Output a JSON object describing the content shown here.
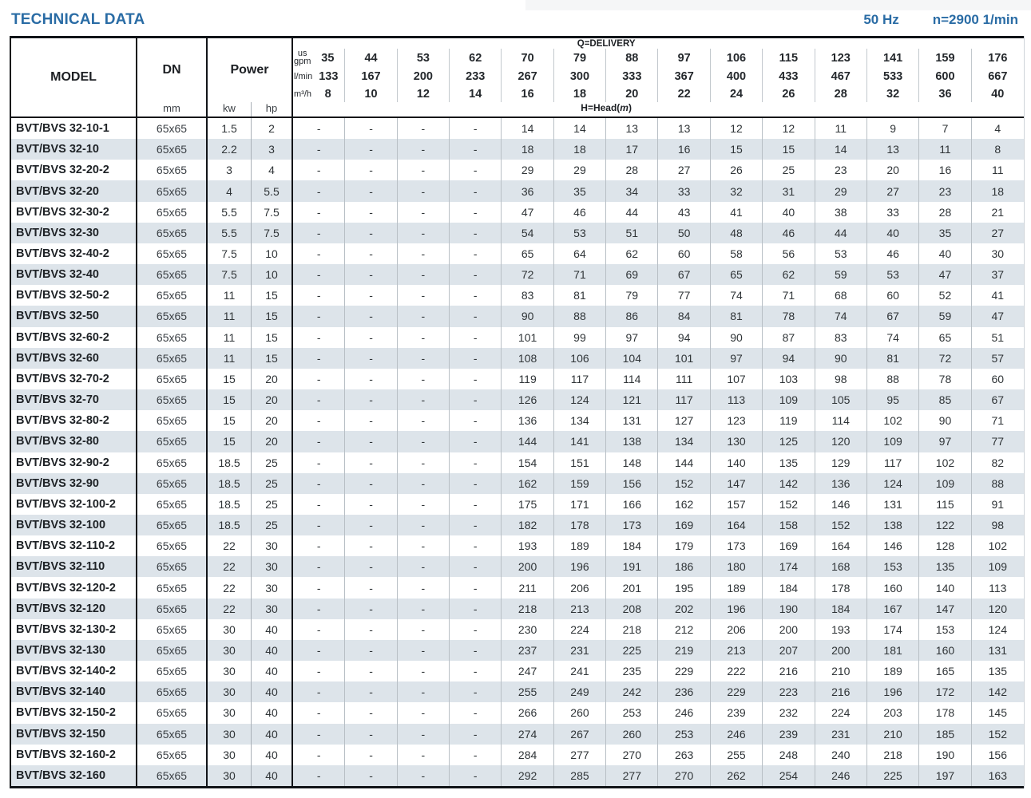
{
  "header_bar": {
    "title": "TECHNICAL DATA",
    "frequency": "50 Hz",
    "speed": "n=2900 1/min"
  },
  "colors": {
    "accent_blue": "#2a6ca5",
    "stripe": "#dde4ea"
  },
  "table": {
    "model_header": "MODEL",
    "dn_header": "DN",
    "dn_unit": "mm",
    "power_header": "Power",
    "power_units": [
      "kw",
      "hp"
    ],
    "delivery": {
      "label": "Q=DELIVERY",
      "head_label": {
        "prefix": "H=Head(",
        "symbol": "m",
        "suffix": ")"
      },
      "unit_rows": [
        {
          "unit_top": "us",
          "unit_bottom": "gpm",
          "values": [
            "35",
            "44",
            "53",
            "62",
            "70",
            "79",
            "88",
            "97",
            "106",
            "115",
            "123",
            "141",
            "159",
            "176"
          ]
        },
        {
          "unit": "l/min",
          "values": [
            "133",
            "167",
            "200",
            "233",
            "267",
            "300",
            "333",
            "367",
            "400",
            "433",
            "467",
            "533",
            "600",
            "667"
          ]
        },
        {
          "unit": "m³/h",
          "values": [
            "8",
            "10",
            "12",
            "14",
            "16",
            "18",
            "20",
            "22",
            "24",
            "26",
            "28",
            "32",
            "36",
            "40"
          ]
        }
      ]
    },
    "rows": [
      {
        "model": "BVT/BVS 32-10-1",
        "dn": "65x65",
        "kw": "1.5",
        "hp": "2",
        "head": [
          "-",
          "-",
          "-",
          "-",
          "14",
          "14",
          "13",
          "13",
          "12",
          "12",
          "11",
          "9",
          "7",
          "4"
        ]
      },
      {
        "model": "BVT/BVS 32-10",
        "dn": "65x65",
        "kw": "2.2",
        "hp": "3",
        "head": [
          "-",
          "-",
          "-",
          "-",
          "18",
          "18",
          "17",
          "16",
          "15",
          "15",
          "14",
          "13",
          "11",
          "8"
        ]
      },
      {
        "model": "BVT/BVS 32-20-2",
        "dn": "65x65",
        "kw": "3",
        "hp": "4",
        "head": [
          "-",
          "-",
          "-",
          "-",
          "29",
          "29",
          "28",
          "27",
          "26",
          "25",
          "23",
          "20",
          "16",
          "11"
        ]
      },
      {
        "model": "BVT/BVS 32-20",
        "dn": "65x65",
        "kw": "4",
        "hp": "5.5",
        "head": [
          "-",
          "-",
          "-",
          "-",
          "36",
          "35",
          "34",
          "33",
          "32",
          "31",
          "29",
          "27",
          "23",
          "18"
        ]
      },
      {
        "model": "BVT/BVS 32-30-2",
        "dn": "65x65",
        "kw": "5.5",
        "hp": "7.5",
        "head": [
          "-",
          "-",
          "-",
          "-",
          "47",
          "46",
          "44",
          "43",
          "41",
          "40",
          "38",
          "33",
          "28",
          "21"
        ]
      },
      {
        "model": "BVT/BVS 32-30",
        "dn": "65x65",
        "kw": "5.5",
        "hp": "7.5",
        "head": [
          "-",
          "-",
          "-",
          "-",
          "54",
          "53",
          "51",
          "50",
          "48",
          "46",
          "44",
          "40",
          "35",
          "27"
        ]
      },
      {
        "model": "BVT/BVS 32-40-2",
        "dn": "65x65",
        "kw": "7.5",
        "hp": "10",
        "head": [
          "-",
          "-",
          "-",
          "-",
          "65",
          "64",
          "62",
          "60",
          "58",
          "56",
          "53",
          "46",
          "40",
          "30"
        ]
      },
      {
        "model": "BVT/BVS 32-40",
        "dn": "65x65",
        "kw": "7.5",
        "hp": "10",
        "head": [
          "-",
          "-",
          "-",
          "-",
          "72",
          "71",
          "69",
          "67",
          "65",
          "62",
          "59",
          "53",
          "47",
          "37"
        ]
      },
      {
        "model": "BVT/BVS 32-50-2",
        "dn": "65x65",
        "kw": "11",
        "hp": "15",
        "head": [
          "-",
          "-",
          "-",
          "-",
          "83",
          "81",
          "79",
          "77",
          "74",
          "71",
          "68",
          "60",
          "52",
          "41"
        ]
      },
      {
        "model": "BVT/BVS 32-50",
        "dn": "65x65",
        "kw": "11",
        "hp": "15",
        "head": [
          "-",
          "-",
          "-",
          "-",
          "90",
          "88",
          "86",
          "84",
          "81",
          "78",
          "74",
          "67",
          "59",
          "47"
        ]
      },
      {
        "model": "BVT/BVS 32-60-2",
        "dn": "65x65",
        "kw": "11",
        "hp": "15",
        "head": [
          "-",
          "-",
          "-",
          "-",
          "101",
          "99",
          "97",
          "94",
          "90",
          "87",
          "83",
          "74",
          "65",
          "51"
        ]
      },
      {
        "model": "BVT/BVS 32-60",
        "dn": "65x65",
        "kw": "11",
        "hp": "15",
        "head": [
          "-",
          "-",
          "-",
          "-",
          "108",
          "106",
          "104",
          "101",
          "97",
          "94",
          "90",
          "81",
          "72",
          "57"
        ]
      },
      {
        "model": "BVT/BVS 32-70-2",
        "dn": "65x65",
        "kw": "15",
        "hp": "20",
        "head": [
          "-",
          "-",
          "-",
          "-",
          "119",
          "117",
          "114",
          "111",
          "107",
          "103",
          "98",
          "88",
          "78",
          "60"
        ]
      },
      {
        "model": "BVT/BVS 32-70",
        "dn": "65x65",
        "kw": "15",
        "hp": "20",
        "head": [
          "-",
          "-",
          "-",
          "-",
          "126",
          "124",
          "121",
          "117",
          "113",
          "109",
          "105",
          "95",
          "85",
          "67"
        ]
      },
      {
        "model": "BVT/BVS 32-80-2",
        "dn": "65x65",
        "kw": "15",
        "hp": "20",
        "head": [
          "-",
          "-",
          "-",
          "-",
          "136",
          "134",
          "131",
          "127",
          "123",
          "119",
          "114",
          "102",
          "90",
          "71"
        ]
      },
      {
        "model": "BVT/BVS 32-80",
        "dn": "65x65",
        "kw": "15",
        "hp": "20",
        "head": [
          "-",
          "-",
          "-",
          "-",
          "144",
          "141",
          "138",
          "134",
          "130",
          "125",
          "120",
          "109",
          "97",
          "77"
        ]
      },
      {
        "model": "BVT/BVS 32-90-2",
        "dn": "65x65",
        "kw": "18.5",
        "hp": "25",
        "head": [
          "-",
          "-",
          "-",
          "-",
          "154",
          "151",
          "148",
          "144",
          "140",
          "135",
          "129",
          "117",
          "102",
          "82"
        ]
      },
      {
        "model": "BVT/BVS 32-90",
        "dn": "65x65",
        "kw": "18.5",
        "hp": "25",
        "head": [
          "-",
          "-",
          "-",
          "-",
          "162",
          "159",
          "156",
          "152",
          "147",
          "142",
          "136",
          "124",
          "109",
          "88"
        ]
      },
      {
        "model": "BVT/BVS 32-100-2",
        "dn": "65x65",
        "kw": "18.5",
        "hp": "25",
        "head": [
          "-",
          "-",
          "-",
          "-",
          "175",
          "171",
          "166",
          "162",
          "157",
          "152",
          "146",
          "131",
          "115",
          "91"
        ]
      },
      {
        "model": "BVT/BVS 32-100",
        "dn": "65x65",
        "kw": "18.5",
        "hp": "25",
        "head": [
          "-",
          "-",
          "-",
          "-",
          "182",
          "178",
          "173",
          "169",
          "164",
          "158",
          "152",
          "138",
          "122",
          "98"
        ]
      },
      {
        "model": "BVT/BVS 32-110-2",
        "dn": "65x65",
        "kw": "22",
        "hp": "30",
        "head": [
          "-",
          "-",
          "-",
          "-",
          "193",
          "189",
          "184",
          "179",
          "173",
          "169",
          "164",
          "146",
          "128",
          "102"
        ]
      },
      {
        "model": "BVT/BVS 32-110",
        "dn": "65x65",
        "kw": "22",
        "hp": "30",
        "head": [
          "-",
          "-",
          "-",
          "-",
          "200",
          "196",
          "191",
          "186",
          "180",
          "174",
          "168",
          "153",
          "135",
          "109"
        ]
      },
      {
        "model": "BVT/BVS 32-120-2",
        "dn": "65x65",
        "kw": "22",
        "hp": "30",
        "head": [
          "-",
          "-",
          "-",
          "-",
          "211",
          "206",
          "201",
          "195",
          "189",
          "184",
          "178",
          "160",
          "140",
          "113"
        ]
      },
      {
        "model": "BVT/BVS 32-120",
        "dn": "65x65",
        "kw": "22",
        "hp": "30",
        "head": [
          "-",
          "-",
          "-",
          "-",
          "218",
          "213",
          "208",
          "202",
          "196",
          "190",
          "184",
          "167",
          "147",
          "120"
        ]
      },
      {
        "model": "BVT/BVS 32-130-2",
        "dn": "65x65",
        "kw": "30",
        "hp": "40",
        "head": [
          "-",
          "-",
          "-",
          "-",
          "230",
          "224",
          "218",
          "212",
          "206",
          "200",
          "193",
          "174",
          "153",
          "124"
        ]
      },
      {
        "model": "BVT/BVS 32-130",
        "dn": "65x65",
        "kw": "30",
        "hp": "40",
        "head": [
          "-",
          "-",
          "-",
          "-",
          "237",
          "231",
          "225",
          "219",
          "213",
          "207",
          "200",
          "181",
          "160",
          "131"
        ]
      },
      {
        "model": "BVT/BVS 32-140-2",
        "dn": "65x65",
        "kw": "30",
        "hp": "40",
        "head": [
          "-",
          "-",
          "-",
          "-",
          "247",
          "241",
          "235",
          "229",
          "222",
          "216",
          "210",
          "189",
          "165",
          "135"
        ]
      },
      {
        "model": "BVT/BVS 32-140",
        "dn": "65x65",
        "kw": "30",
        "hp": "40",
        "head": [
          "-",
          "-",
          "-",
          "-",
          "255",
          "249",
          "242",
          "236",
          "229",
          "223",
          "216",
          "196",
          "172",
          "142"
        ]
      },
      {
        "model": "BVT/BVS 32-150-2",
        "dn": "65x65",
        "kw": "30",
        "hp": "40",
        "head": [
          "-",
          "-",
          "-",
          "-",
          "266",
          "260",
          "253",
          "246",
          "239",
          "232",
          "224",
          "203",
          "178",
          "145"
        ]
      },
      {
        "model": "BVT/BVS 32-150",
        "dn": "65x65",
        "kw": "30",
        "hp": "40",
        "head": [
          "-",
          "-",
          "-",
          "-",
          "274",
          "267",
          "260",
          "253",
          "246",
          "239",
          "231",
          "210",
          "185",
          "152"
        ]
      },
      {
        "model": "BVT/BVS 32-160-2",
        "dn": "65x65",
        "kw": "30",
        "hp": "40",
        "head": [
          "-",
          "-",
          "-",
          "-",
          "284",
          "277",
          "270",
          "263",
          "255",
          "248",
          "240",
          "218",
          "190",
          "156"
        ]
      },
      {
        "model": "BVT/BVS 32-160",
        "dn": "65x65",
        "kw": "30",
        "hp": "40",
        "head": [
          "-",
          "-",
          "-",
          "-",
          "292",
          "285",
          "277",
          "270",
          "262",
          "254",
          "246",
          "225",
          "197",
          "163"
        ]
      }
    ]
  }
}
